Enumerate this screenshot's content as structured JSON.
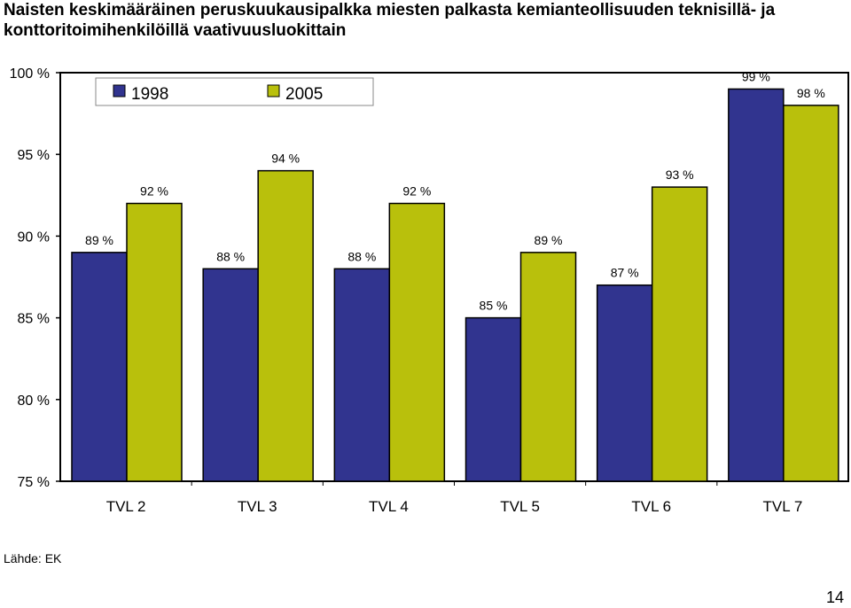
{
  "title": "Naisten keskimääräinen peruskuukausipalkka miesten palkasta kemianteollisuuden teknisillä- ja konttoritoimihenkilöillä vaativuusluokittain",
  "source": "Lähde: EK",
  "page_number": "14",
  "chart_data": {
    "type": "bar",
    "categories": [
      "TVL 2",
      "TVL 3",
      "TVL 4",
      "TVL 5",
      "TVL 6",
      "TVL 7"
    ],
    "series": [
      {
        "name": "1998",
        "color": "#31348f",
        "values": [
          89,
          88,
          88,
          85,
          87,
          99
        ],
        "labels": [
          "89 %",
          "88 %",
          "88 %",
          "85 %",
          "87 %",
          "99 %"
        ]
      },
      {
        "name": "2005",
        "color": "#b9c00c",
        "values": [
          92,
          94,
          92,
          89,
          93,
          98
        ],
        "labels": [
          "92 %",
          "94 %",
          "92 %",
          "89 %",
          "93 %",
          "98 %"
        ]
      }
    ],
    "ylim": [
      75,
      100
    ],
    "yticks": [
      75,
      80,
      85,
      90,
      95,
      100
    ],
    "ytick_labels": [
      "75 %",
      "80 %",
      "85 %",
      "90 %",
      "95 %",
      "100 %"
    ],
    "grid": false,
    "legend_position": "top-left"
  }
}
